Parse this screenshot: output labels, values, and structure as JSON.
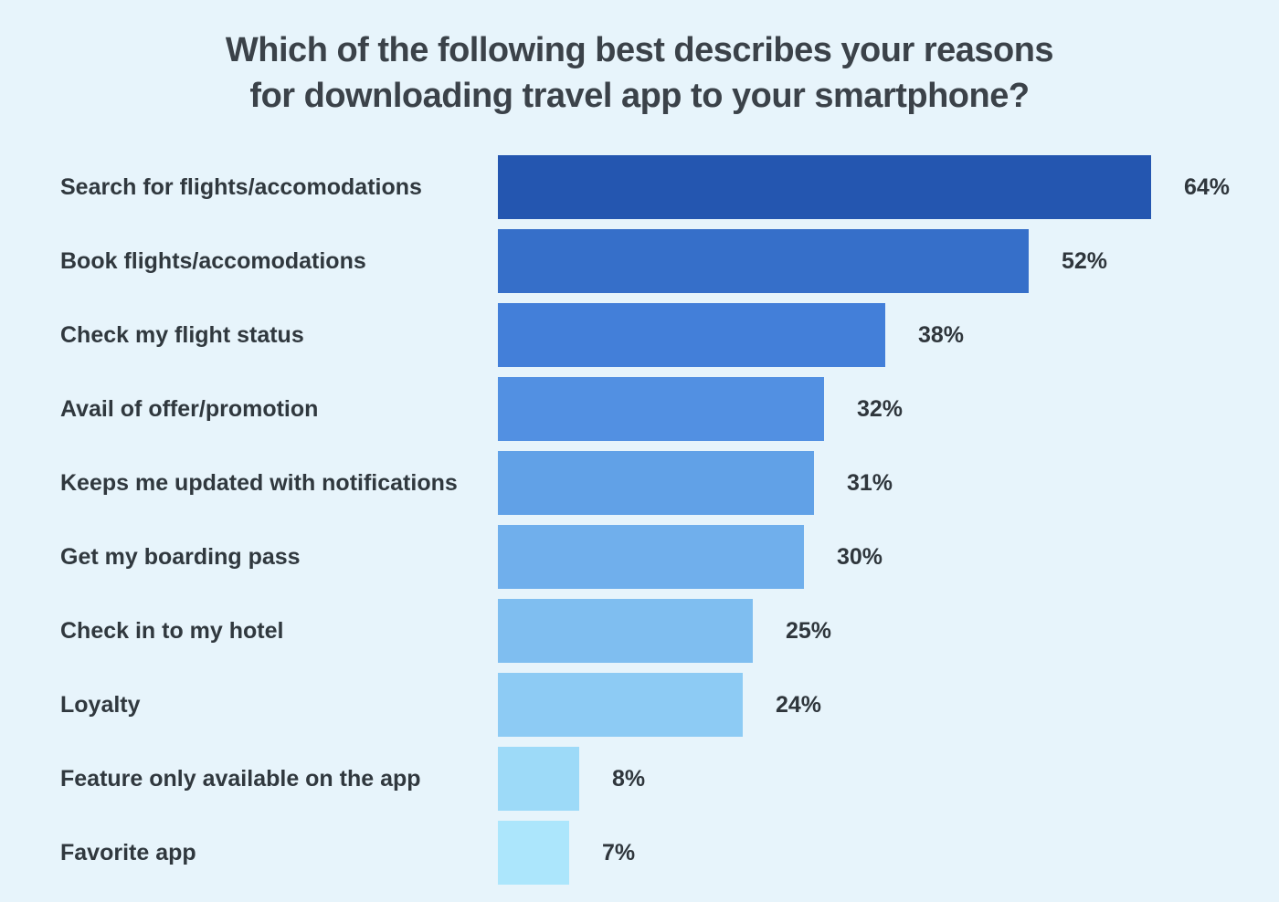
{
  "title": {
    "line1": "Which of the following best describes your reasons",
    "line2": "for downloading travel app to your smartphone?"
  },
  "colors": {
    "background": "#E7F4FB",
    "title_text": "#3B4249",
    "label_text": "#30383E"
  },
  "chart_data": {
    "type": "bar",
    "orientation": "horizontal",
    "title": "Which of the following best describes your reasons for downloading travel app to your smartphone?",
    "xlabel": "",
    "ylabel": "",
    "xlim": [
      0,
      70
    ],
    "grid": false,
    "legend": false,
    "categories": [
      "Search for flights/accomodations",
      "Book flights/accomodations",
      "Check my flight status",
      "Avail of offer/promotion",
      "Keeps me updated with notifications",
      "Get my boarding pass",
      "Check in to my hotel",
      "Loyalty",
      "Feature only available on the app",
      "Favorite app"
    ],
    "values": [
      64,
      52,
      38,
      32,
      31,
      30,
      25,
      24,
      8,
      7
    ],
    "value_labels": [
      "64%",
      "52%",
      "38%",
      "32%",
      "31%",
      "30%",
      "25%",
      "24%",
      "8%",
      "7%"
    ],
    "bar_colors": [
      "#2456B0",
      "#366FC9",
      "#437FD9",
      "#5290E2",
      "#61A1E7",
      "#70AFEC",
      "#7FBEF0",
      "#8DCBF4",
      "#9DDAF8",
      "#ACE6FC"
    ]
  }
}
